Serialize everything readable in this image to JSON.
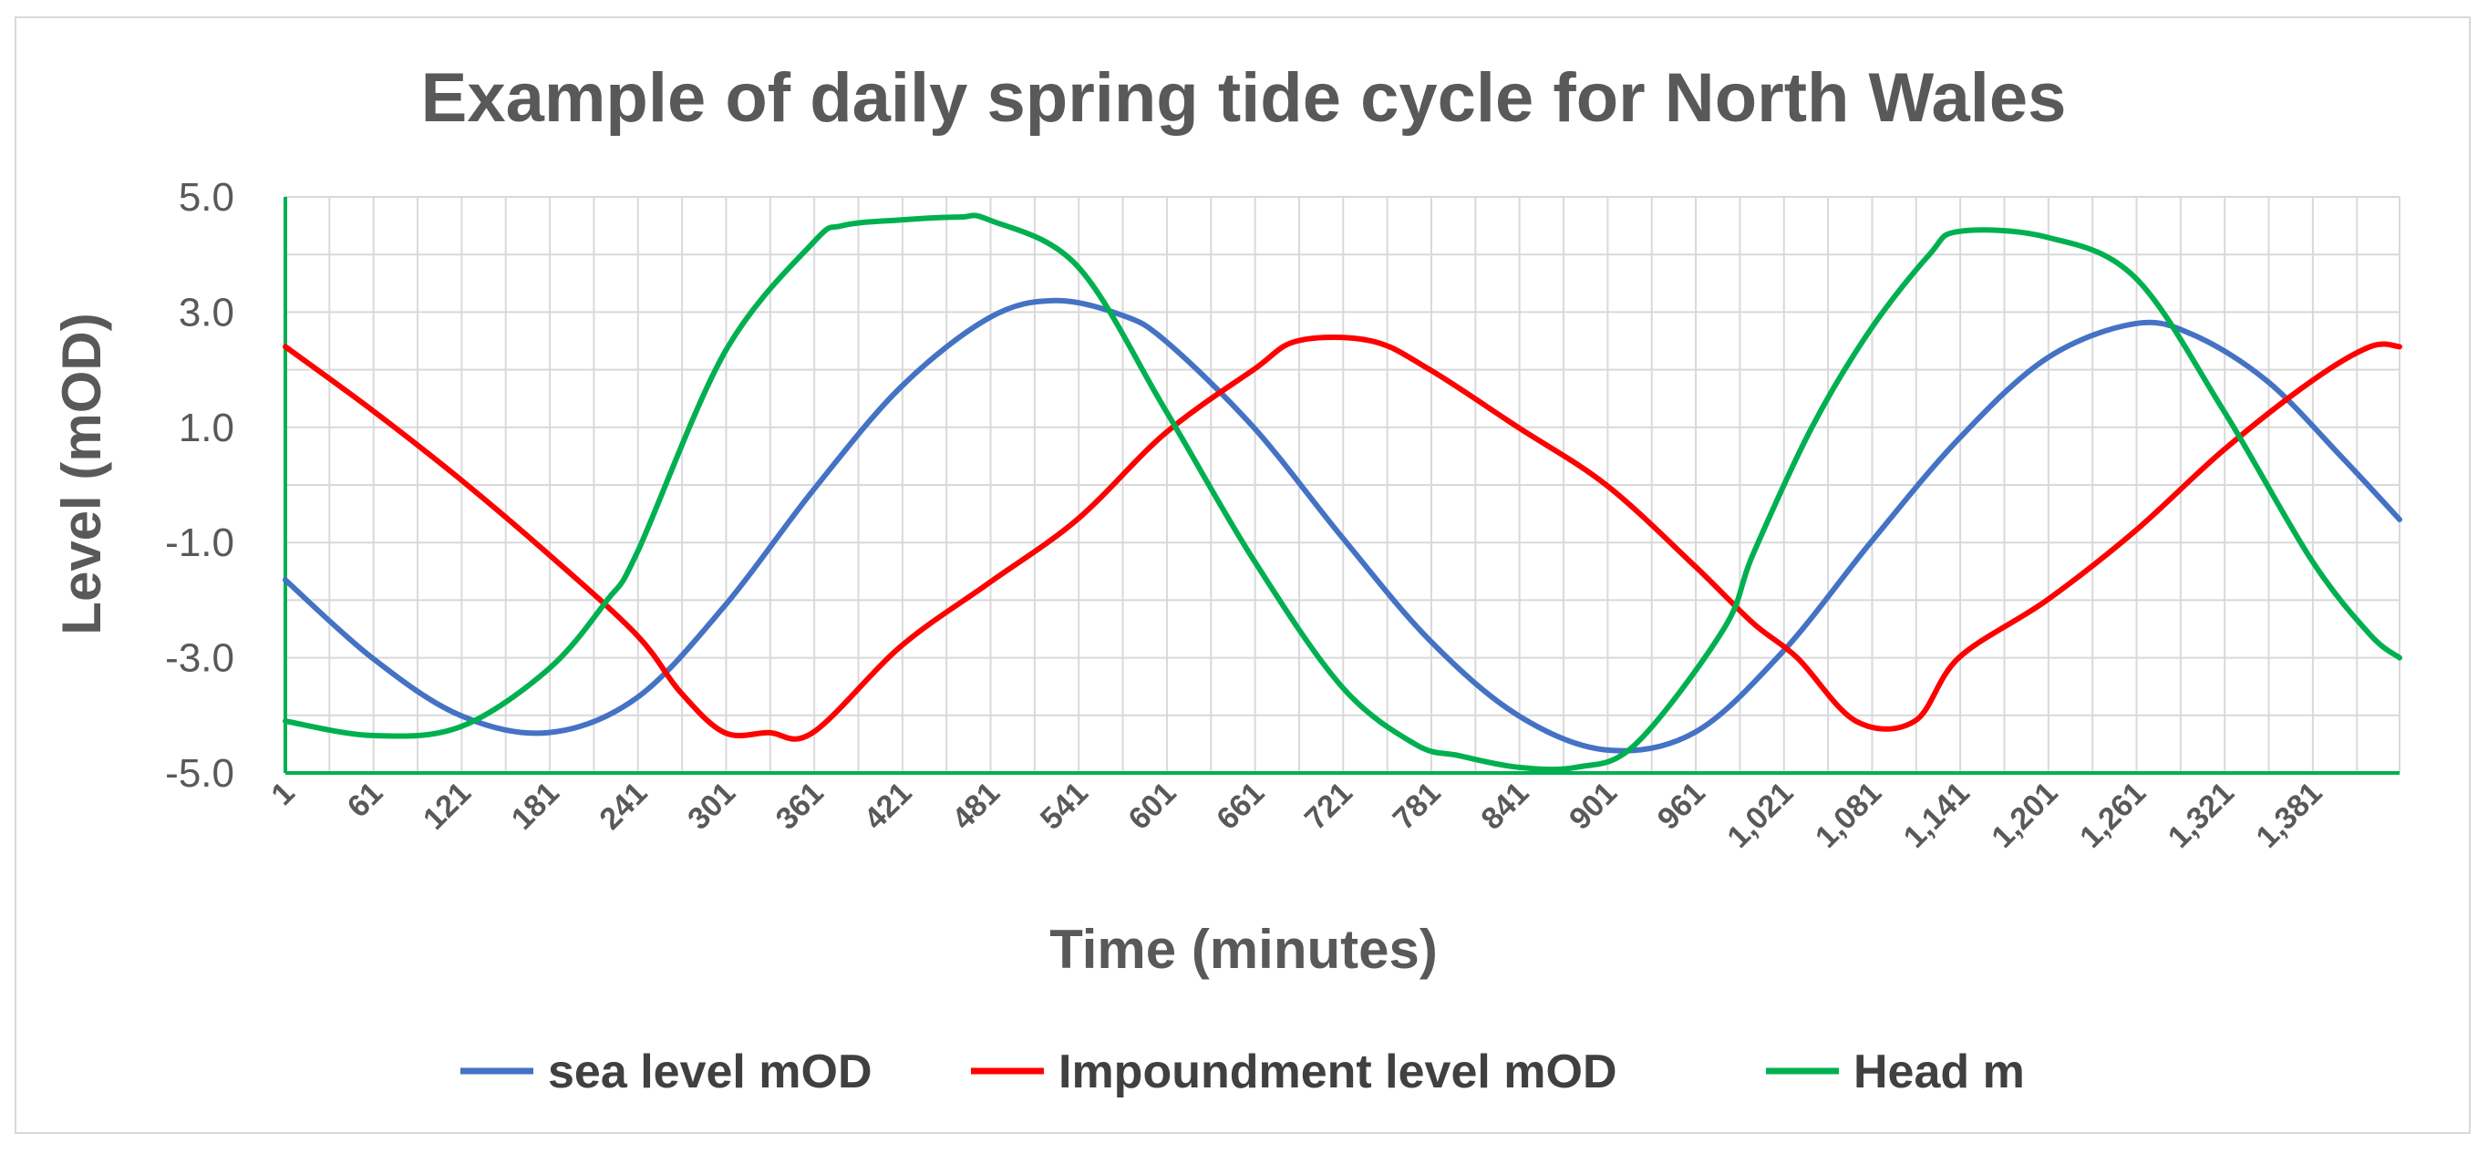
{
  "chart_data": {
    "type": "line",
    "title": "Example of daily spring tide cycle for North Wales",
    "xlabel": "Time (minutes)",
    "ylabel": "Level (mOD)",
    "ylim": [
      -5,
      5
    ],
    "xlim": [
      1,
      1440
    ],
    "grid": true,
    "legend_position": "bottom",
    "y_ticks": [
      "5.0",
      "3.0",
      "1.0",
      "-1.0",
      "-3.0",
      "-5.0"
    ],
    "y_tick_values": [
      5,
      3,
      1,
      -1,
      -3,
      -5
    ],
    "x_ticks": [
      "1",
      "61",
      "121",
      "181",
      "241",
      "301",
      "361",
      "421",
      "481",
      "541",
      "601",
      "661",
      "721",
      "781",
      "841",
      "901",
      "961",
      "1,021",
      "1,081",
      "1,141",
      "1,201",
      "1,261",
      "1,321",
      "1,381"
    ],
    "x_tick_values": [
      1,
      61,
      121,
      181,
      241,
      301,
      361,
      421,
      481,
      541,
      601,
      661,
      721,
      781,
      841,
      901,
      961,
      1021,
      1081,
      1141,
      1201,
      1261,
      1321,
      1381
    ],
    "series": [
      {
        "name": "sea level mOD",
        "color": "#4472c4",
        "x": [
          1,
          60,
          120,
          180,
          240,
          300,
          360,
          420,
          480,
          525,
          570,
          600,
          660,
          720,
          780,
          840,
          900,
          960,
          1020,
          1080,
          1140,
          1200,
          1260,
          1300,
          1350,
          1400,
          1440
        ],
        "y": [
          -1.65,
          -3.0,
          -4.0,
          -4.3,
          -3.7,
          -2.1,
          -0.1,
          1.7,
          2.9,
          3.2,
          2.95,
          2.5,
          1.0,
          -0.9,
          -2.7,
          -4.0,
          -4.6,
          -4.3,
          -2.9,
          -1.0,
          0.8,
          2.2,
          2.8,
          2.6,
          1.8,
          0.5,
          -0.6
        ]
      },
      {
        "name": "Impoundment level mOD",
        "color": "#ff0000",
        "x": [
          1,
          60,
          120,
          180,
          240,
          270,
          300,
          330,
          360,
          420,
          480,
          540,
          600,
          660,
          690,
          740,
          780,
          840,
          900,
          960,
          1000,
          1030,
          1070,
          1110,
          1140,
          1200,
          1260,
          1320,
          1380,
          1420,
          1440
        ],
        "y": [
          2.4,
          1.3,
          0.1,
          -1.2,
          -2.6,
          -3.6,
          -4.3,
          -4.3,
          -4.3,
          -2.8,
          -1.7,
          -0.6,
          0.9,
          2.0,
          2.5,
          2.5,
          2.0,
          1.0,
          0.0,
          -1.4,
          -2.4,
          -3.0,
          -4.1,
          -4.1,
          -3.0,
          -2.0,
          -0.8,
          0.6,
          1.8,
          2.4,
          2.4
        ]
      },
      {
        "name": "Head m",
        "color": "#00b050",
        "x": [
          1,
          60,
          120,
          180,
          220,
          240,
          300,
          360,
          380,
          420,
          460,
          480,
          540,
          600,
          660,
          720,
          770,
          800,
          840,
          880,
          920,
          980,
          1000,
          1040,
          1080,
          1120,
          1140,
          1200,
          1260,
          1320,
          1380,
          1420,
          1440
        ],
        "y": [
          -4.1,
          -4.35,
          -4.2,
          -3.2,
          -2.0,
          -1.2,
          2.3,
          4.2,
          4.5,
          4.6,
          4.65,
          4.6,
          3.8,
          1.3,
          -1.3,
          -3.5,
          -4.5,
          -4.7,
          -4.9,
          -4.9,
          -4.5,
          -2.5,
          -1.2,
          1.0,
          2.7,
          4.0,
          4.4,
          4.3,
          3.6,
          1.3,
          -1.3,
          -2.6,
          -3.0
        ]
      }
    ]
  }
}
